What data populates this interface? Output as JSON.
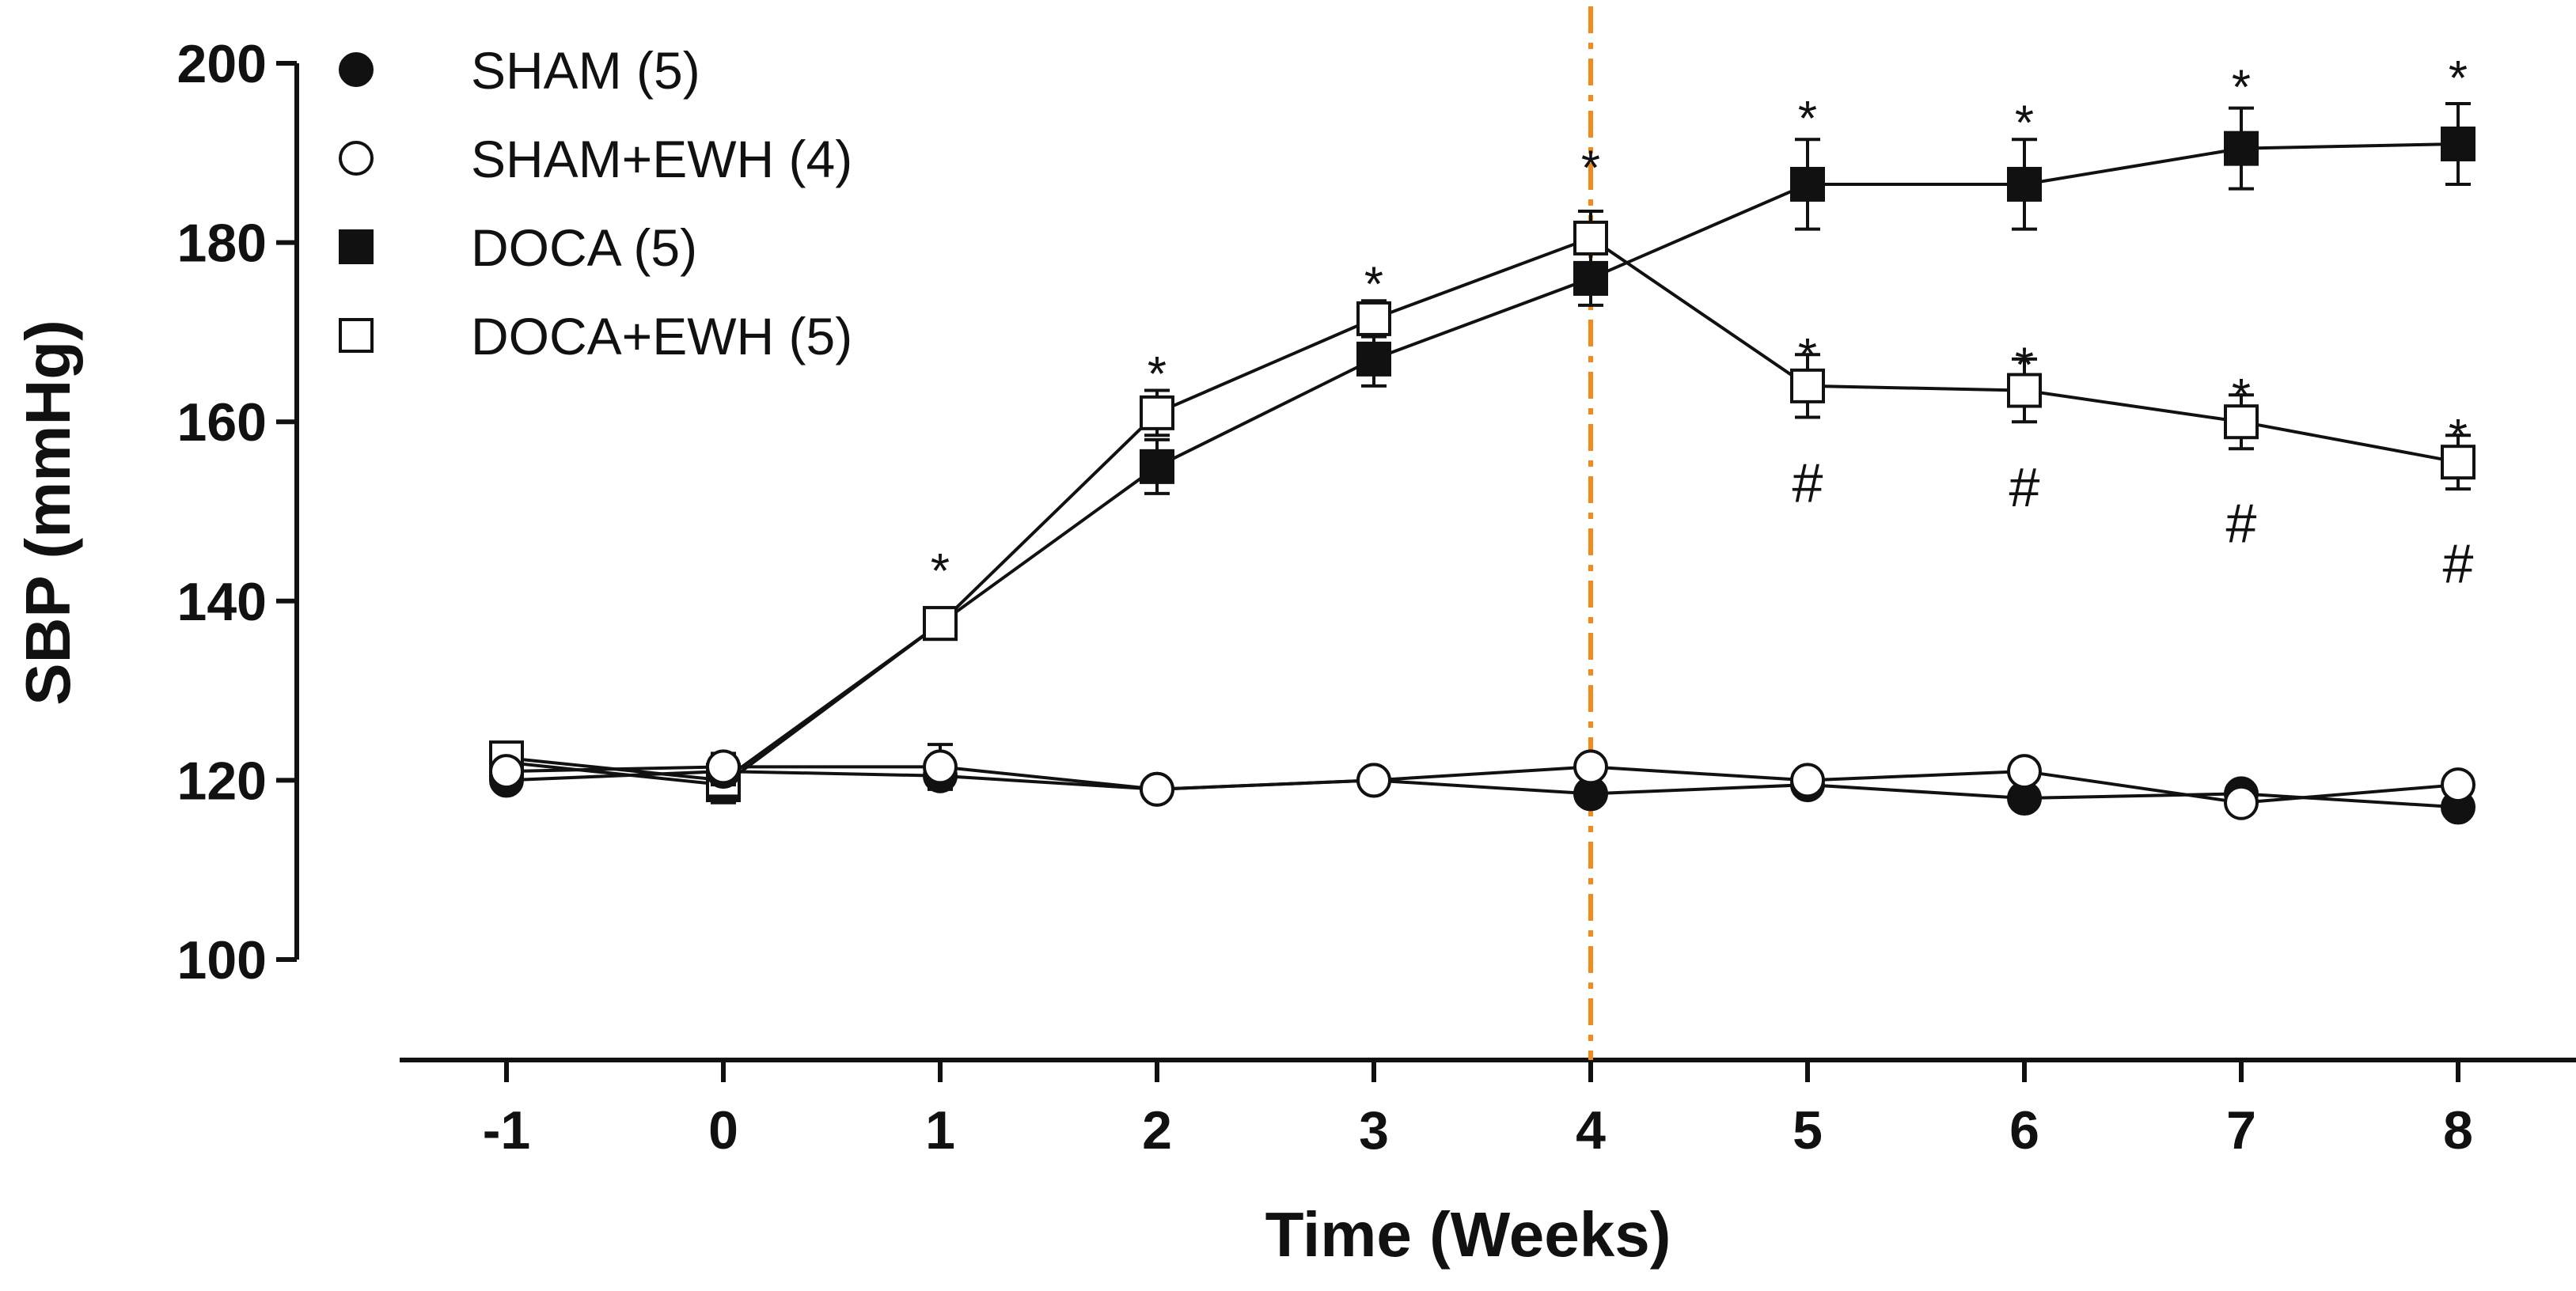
{
  "chart_data": {
    "type": "line",
    "title": "",
    "xlabel": "Time (Weeks)",
    "ylabel": "SBP (mmHg)",
    "x": [
      -1,
      0,
      1,
      2,
      3,
      4,
      5,
      6,
      7,
      8
    ],
    "x_tick_labels": [
      "-1",
      "0",
      "1",
      "2",
      "3",
      "4",
      "5",
      "6",
      "7",
      "8"
    ],
    "y_ticks": [
      100,
      120,
      140,
      160,
      180,
      200
    ],
    "y_tick_labels": [
      "100",
      "120",
      "140",
      "160",
      "180",
      "200"
    ],
    "ylim": [
      100,
      200
    ],
    "xlim": [
      -1,
      8
    ],
    "legend_position": "top-left",
    "vertical_line": {
      "x": 4,
      "color": "#f08c1e",
      "style": "dash-dot"
    },
    "series": [
      {
        "name": "SHAM (5)",
        "marker": "filled-circle",
        "values": [
          120,
          121,
          120.5,
          119,
          120,
          118.5,
          119.5,
          118,
          118.5,
          117
        ],
        "errors": [
          1,
          1.5,
          1.5,
          1,
          1,
          1,
          1,
          1,
          1,
          1
        ]
      },
      {
        "name": "SHAM+EWH (4)",
        "marker": "open-circle",
        "values": [
          121,
          121.5,
          121.5,
          119,
          120,
          121.5,
          120,
          121,
          117.5,
          119.5
        ],
        "errors": [
          1,
          1.5,
          2.5,
          1,
          1,
          1,
          1,
          1,
          1,
          1
        ]
      },
      {
        "name": "DOCA (5)",
        "marker": "filled-square",
        "values": [
          122,
          119.5,
          137.5,
          155,
          167,
          176,
          186.5,
          186.5,
          190.5,
          191
        ],
        "errors": [
          1.5,
          2,
          1.5,
          3,
          3,
          3,
          5,
          5,
          4.5,
          4.5
        ]
      },
      {
        "name": "DOCA+EWH (5)",
        "marker": "open-square",
        "values": [
          122.5,
          120,
          137.5,
          161,
          171.5,
          180.5,
          164,
          163.5,
          160,
          155.5
        ],
        "errors": [
          1.5,
          2,
          1.5,
          2.5,
          2,
          3,
          3.5,
          3.5,
          3,
          3
        ]
      }
    ],
    "annotations": [
      {
        "text": "*",
        "x": 1,
        "y": 145
      },
      {
        "text": "*",
        "x": 2,
        "y": 167
      },
      {
        "text": "*",
        "x": 3,
        "y": 177
      },
      {
        "text": "*",
        "x": 4,
        "y": 190
      },
      {
        "text": "*",
        "x": 5,
        "y": 195.5
      },
      {
        "text": "*",
        "x": 6,
        "y": 195
      },
      {
        "text": "*",
        "x": 7,
        "y": 199
      },
      {
        "text": "*",
        "x": 8,
        "y": 200
      },
      {
        "text": "*",
        "x": 5,
        "y": 169
      },
      {
        "text": "*",
        "x": 6,
        "y": 168
      },
      {
        "text": "*",
        "x": 7,
        "y": 164.5
      },
      {
        "text": "*",
        "x": 8,
        "y": 160
      },
      {
        "text": "#",
        "x": 5,
        "y": 153
      },
      {
        "text": "#",
        "x": 6,
        "y": 152.5
      },
      {
        "text": "#",
        "x": 7,
        "y": 148.5
      },
      {
        "text": "#",
        "x": 8,
        "y": 144
      }
    ]
  }
}
